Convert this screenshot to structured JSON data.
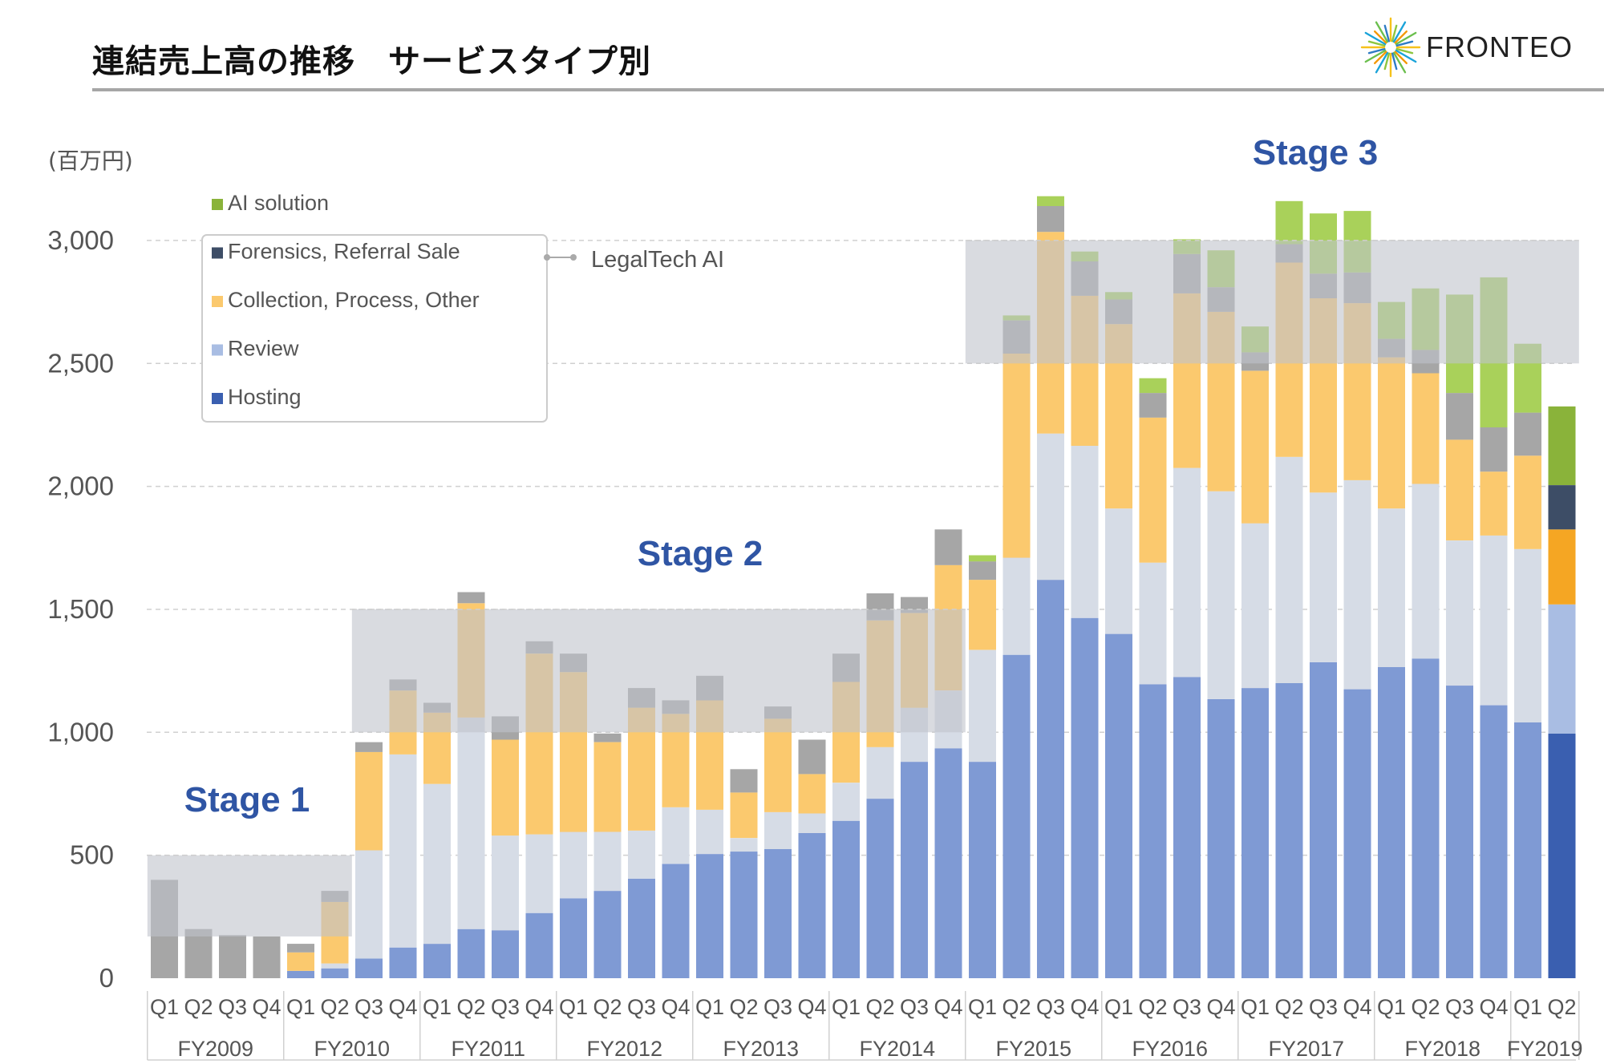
{
  "header": {
    "title": "連結売上高の推移　サービスタイプ別",
    "logo_text": "FRONTEO"
  },
  "colors": {
    "hosting": "#7f9ad4",
    "review": "#d6dce6",
    "collection": "#fbc96e",
    "forensics": "#a6a6a6",
    "ai": "#a9d15a",
    "hosting_last": "#3a5fb0",
    "review_last": "#a9bde3",
    "collection_last": "#f5a623",
    "forensics_last": "#3d4d66",
    "ai_last": "#8ab33a",
    "stage_box": "#bfc3cc",
    "stage_label": "#2f55a4",
    "legend_hosting": "#3a5fb0",
    "legend_review": "#a9bde3",
    "legend_collection": "#fbc96e",
    "legend_forensics": "#3d4d66",
    "legend_ai": "#8ab33a"
  },
  "chart_data": {
    "type": "bar",
    "title": "連結売上高の推移　サービスタイプ別",
    "ylabel": "(百万円)",
    "ylim": [
      0,
      3350
    ],
    "yticks": [
      0,
      500,
      1000,
      1500,
      2000,
      2500,
      3000
    ],
    "ytick_labels": [
      "0",
      "500",
      "1,000",
      "1,500",
      "2,000",
      "2,500",
      "3,000"
    ],
    "categories": [
      "Q1",
      "Q2",
      "Q3",
      "Q4",
      "Q1",
      "Q2",
      "Q3",
      "Q4",
      "Q1",
      "Q2",
      "Q3",
      "Q4",
      "Q1",
      "Q2",
      "Q3",
      "Q4",
      "Q1",
      "Q2",
      "Q3",
      "Q4",
      "Q1",
      "Q2",
      "Q3",
      "Q4",
      "Q1",
      "Q2",
      "Q3",
      "Q4",
      "Q1",
      "Q2",
      "Q3",
      "Q4",
      "Q1",
      "Q2",
      "Q3",
      "Q4",
      "Q1",
      "Q2",
      "Q3",
      "Q4",
      "Q1",
      "Q2"
    ],
    "fiscal_years": [
      {
        "label": "FY2009",
        "quarters": 4
      },
      {
        "label": "FY2010",
        "quarters": 4
      },
      {
        "label": "FY2011",
        "quarters": 4
      },
      {
        "label": "FY2012",
        "quarters": 4
      },
      {
        "label": "FY2013",
        "quarters": 4
      },
      {
        "label": "FY2014",
        "quarters": 4
      },
      {
        "label": "FY2015",
        "quarters": 4
      },
      {
        "label": "FY2016",
        "quarters": 4
      },
      {
        "label": "FY2017",
        "quarters": 4
      },
      {
        "label": "FY2018",
        "quarters": 4
      },
      {
        "label": "FY2019",
        "quarters": 2
      }
    ],
    "series": [
      {
        "name": "Hosting",
        "key": "hosting",
        "values": [
          0,
          0,
          0,
          0,
          30,
          40,
          80,
          125,
          140,
          200,
          195,
          265,
          325,
          355,
          405,
          465,
          505,
          515,
          525,
          590,
          640,
          730,
          880,
          935,
          880,
          1315,
          1620,
          1465,
          1400,
          1195,
          1225,
          1135,
          1180,
          1200,
          1285,
          1175,
          1265,
          1300,
          1190,
          1110,
          1040,
          995
        ]
      },
      {
        "name": "Review",
        "key": "review",
        "values": [
          0,
          0,
          0,
          0,
          0,
          20,
          440,
          785,
          650,
          860,
          385,
          320,
          270,
          240,
          195,
          230,
          180,
          55,
          150,
          80,
          155,
          210,
          220,
          235,
          455,
          395,
          595,
          700,
          510,
          495,
          850,
          845,
          670,
          920,
          690,
          850,
          645,
          710,
          590,
          690,
          705,
          525
        ]
      },
      {
        "name": "Collection, Process, Other",
        "key": "collection",
        "values": [
          0,
          0,
          0,
          0,
          75,
          250,
          400,
          260,
          290,
          465,
          390,
          735,
          650,
          365,
          500,
          380,
          445,
          185,
          380,
          160,
          410,
          515,
          385,
          510,
          285,
          830,
          820,
          610,
          750,
          590,
          710,
          730,
          620,
          790,
          790,
          720,
          615,
          450,
          410,
          260,
          380,
          305
        ]
      },
      {
        "name": "Forensics, Referral Sale",
        "key": "forensics",
        "values": [
          400,
          200,
          175,
          170,
          35,
          45,
          40,
          45,
          40,
          45,
          95,
          50,
          75,
          35,
          80,
          55,
          100,
          95,
          50,
          140,
          115,
          110,
          65,
          145,
          75,
          135,
          105,
          140,
          100,
          100,
          160,
          100,
          75,
          75,
          100,
          125,
          75,
          95,
          190,
          180,
          175,
          180
        ]
      },
      {
        "name": "AI solution",
        "key": "ai",
        "values": [
          0,
          0,
          0,
          0,
          0,
          0,
          0,
          0,
          0,
          0,
          0,
          0,
          0,
          0,
          0,
          0,
          0,
          0,
          0,
          0,
          0,
          0,
          0,
          0,
          25,
          20,
          40,
          40,
          30,
          60,
          60,
          150,
          105,
          175,
          245,
          250,
          150,
          250,
          400,
          610,
          280,
          320
        ]
      }
    ],
    "legend": [
      "AI solution",
      "Forensics, Referral Sale",
      "Collection, Process, Other",
      "Review",
      "Hosting"
    ],
    "legend_annotation": "LegalTech AI",
    "stages": [
      {
        "label": "Stage 1",
        "from_bar": 0,
        "to_bar": 5,
        "y0": 170,
        "y1": 500
      },
      {
        "label": "Stage 2",
        "from_bar": 6,
        "to_bar": 23,
        "y0": 1000,
        "y1": 1500
      },
      {
        "label": "Stage 3",
        "from_bar": 24,
        "to_bar": 41,
        "y0": 2500,
        "y1": 3000
      }
    ]
  }
}
